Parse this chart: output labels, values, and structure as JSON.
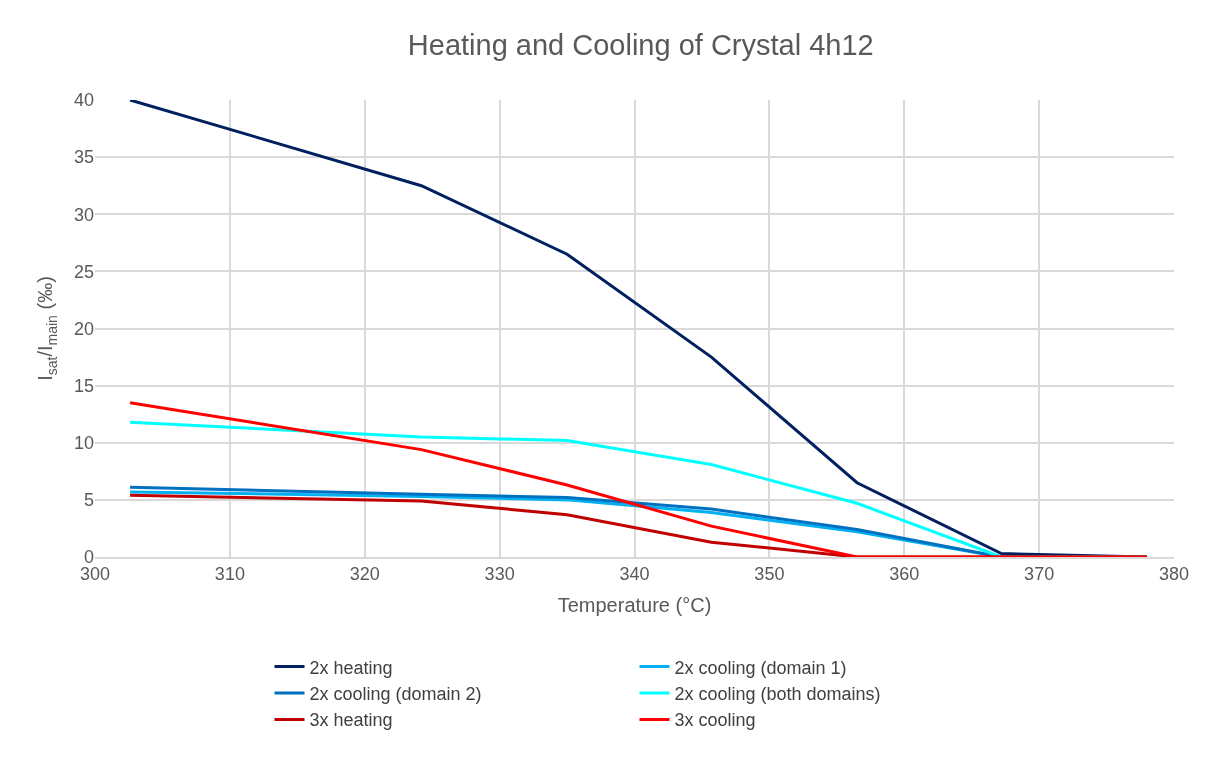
{
  "chart_data": {
    "type": "line",
    "title": "Heating and Cooling of Crystal 4h12",
    "xlabel": "Temperature (°C)",
    "ylabel": "I$_{sat}$/I$_{main}$ (‰)",
    "x": [
      302.6,
      324.2,
      335.0,
      345.7,
      356.5,
      367.2,
      378.0
    ],
    "xlim": [
      300,
      380
    ],
    "xticks": [
      300,
      310,
      320,
      330,
      340,
      350,
      360,
      370,
      380
    ],
    "ylim": [
      0,
      40
    ],
    "yticks": [
      0,
      5,
      10,
      15,
      20,
      25,
      30,
      35,
      40
    ],
    "grid": true,
    "legend": "bottom",
    "marker": "none",
    "line_style": "solid",
    "series": [
      {
        "name": "2x heating",
        "color": "#002060",
        "values": [
          40,
          32.5,
          26.5,
          17.5,
          6.5,
          0.3,
          0
        ]
      },
      {
        "name": "2x cooling (domain 1)",
        "color": "#00b0f0",
        "values": [
          5.7,
          5.3,
          5.0,
          3.9,
          2.2,
          0,
          0
        ]
      },
      {
        "name": "2x cooling (domain 2)",
        "color": "#0070c0",
        "values": [
          6.1,
          5.5,
          5.2,
          4.2,
          2.4,
          0,
          0
        ]
      },
      {
        "name": "2x cooling (both domains)",
        "color": "#00ffff",
        "values": [
          11.8,
          10.5,
          10.2,
          8.1,
          4.7,
          0,
          0
        ]
      },
      {
        "name": "3x heating",
        "color": "#c00000",
        "values": [
          5.4,
          4.9,
          3.7,
          1.3,
          0,
          0,
          0
        ]
      },
      {
        "name": "3x cooling",
        "color": "#ff0000",
        "values": [
          13.5,
          9.4,
          6.3,
          2.7,
          0,
          0,
          0
        ]
      }
    ]
  }
}
